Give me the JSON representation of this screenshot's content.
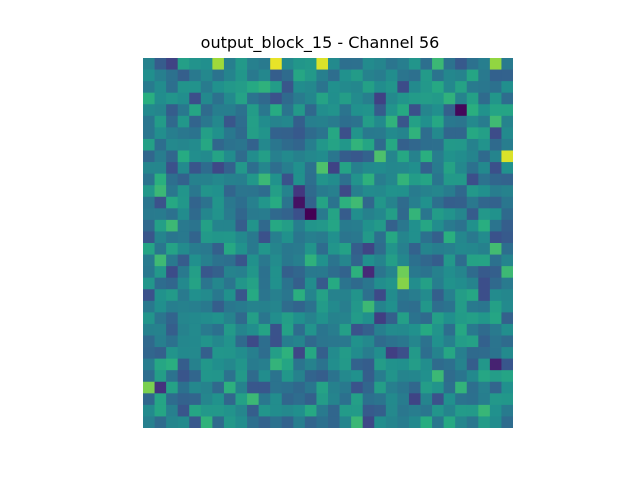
{
  "chart_data": {
    "type": "heatmap",
    "title": "output_block_15 - Channel 56",
    "xlabel": "",
    "ylabel": "",
    "axes_visible": false,
    "grid": false,
    "colormap": "viridis",
    "value_range": [
      0,
      1
    ],
    "rows": 32,
    "cols": 32,
    "seed": 1556,
    "hotspots": [
      {
        "row": 0,
        "col": 11,
        "value": 0.97
      },
      {
        "row": 0,
        "col": 15,
        "value": 0.95
      },
      {
        "row": 0,
        "col": 6,
        "value": 0.86
      },
      {
        "row": 0,
        "col": 30,
        "value": 0.84
      },
      {
        "row": 4,
        "col": 27,
        "value": 0.02
      },
      {
        "row": 8,
        "col": 31,
        "value": 0.95
      },
      {
        "row": 12,
        "col": 13,
        "value": 0.05
      },
      {
        "row": 13,
        "col": 14,
        "value": 0.0
      },
      {
        "row": 18,
        "col": 19,
        "value": 0.12
      },
      {
        "row": 18,
        "col": 22,
        "value": 0.78
      },
      {
        "row": 19,
        "col": 22,
        "value": 0.82
      },
      {
        "row": 26,
        "col": 30,
        "value": 0.1
      },
      {
        "row": 28,
        "col": 0,
        "value": 0.8
      },
      {
        "row": 28,
        "col": 1,
        "value": 0.15
      }
    ]
  }
}
